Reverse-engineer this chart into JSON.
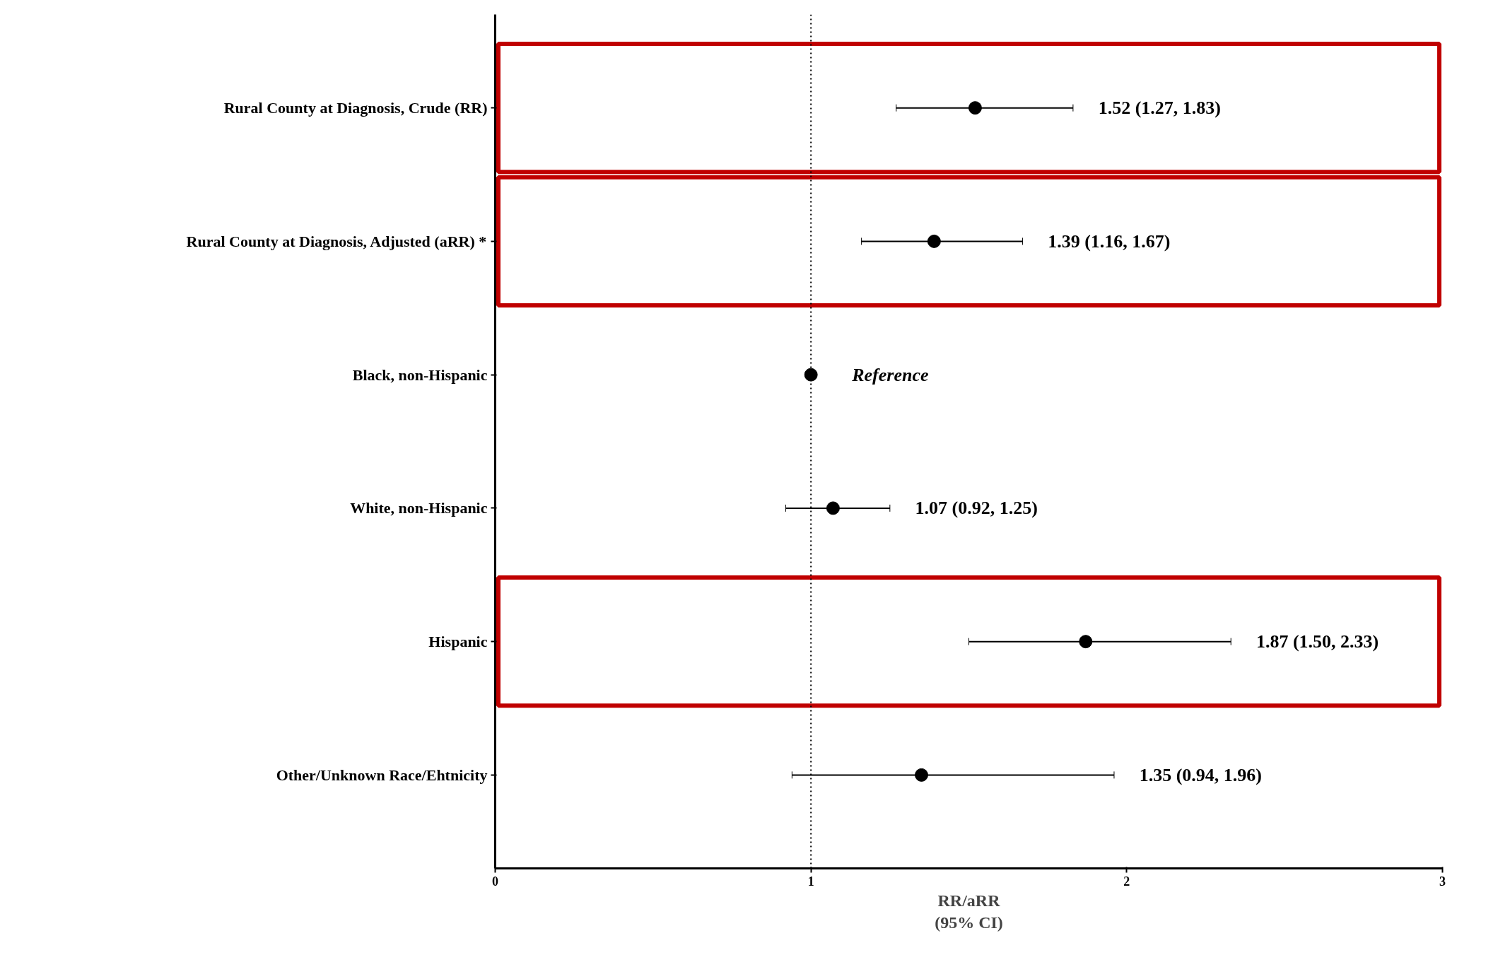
{
  "chart_data": {
    "type": "scatter",
    "xlabel": "RR/aRR\n(95% CI)",
    "categories": [
      "Rural County at Diagnosis, Crude (RR)",
      "Rural County at Diagnosis, Adjusted (aRR) *",
      "Black, non-Hispanic",
      "White, non-Hispanic",
      "Hispanic",
      "Other/Unknown Race/Ehtnicity"
    ],
    "orientation": "horizontal",
    "values": [
      1.52,
      1.39,
      1,
      1.07,
      1.87,
      1.35
    ],
    "errors": [
      [
        1.27,
        1.83
      ],
      [
        1.16,
        1.67
      ],
      null,
      [
        0.92,
        1.25
      ],
      [
        1.5,
        2.33
      ],
      [
        0.94,
        1.96
      ]
    ],
    "annotations": [
      {
        "text": "1.52 (1.27, 1.83)",
        "x": 1.83,
        "y": "Rural County at Diagnosis, Crude (RR)"
      },
      {
        "text": "1.39 (1.16, 1.67)",
        "x": 1.67,
        "y": "Rural County at Diagnosis, Adjusted (aRR) *"
      },
      {
        "text": "Reference",
        "x": 1,
        "y": "Black, non-Hispanic"
      },
      {
        "text": "1.07 (0.92, 1.25)",
        "x": 1.25,
        "y": "White, non-Hispanic"
      },
      {
        "text": "1.87 (1.50, 2.33)",
        "x": 2.33,
        "y": "Hispanic"
      },
      {
        "text": "1.35 (0.94, 1.96)",
        "x": 1.96,
        "y": "Other/Unknown Race/Ehtnicity"
      }
    ],
    "color": "#000000",
    "marker": "circle",
    "grid": false,
    "xlim": [
      0,
      3
    ],
    "xticks": [
      0,
      1,
      2,
      3
    ],
    "ref_lines": [
      {
        "axis": "x",
        "value": 1,
        "line_style": "dotted",
        "color": "#000000"
      }
    ]
  }
}
